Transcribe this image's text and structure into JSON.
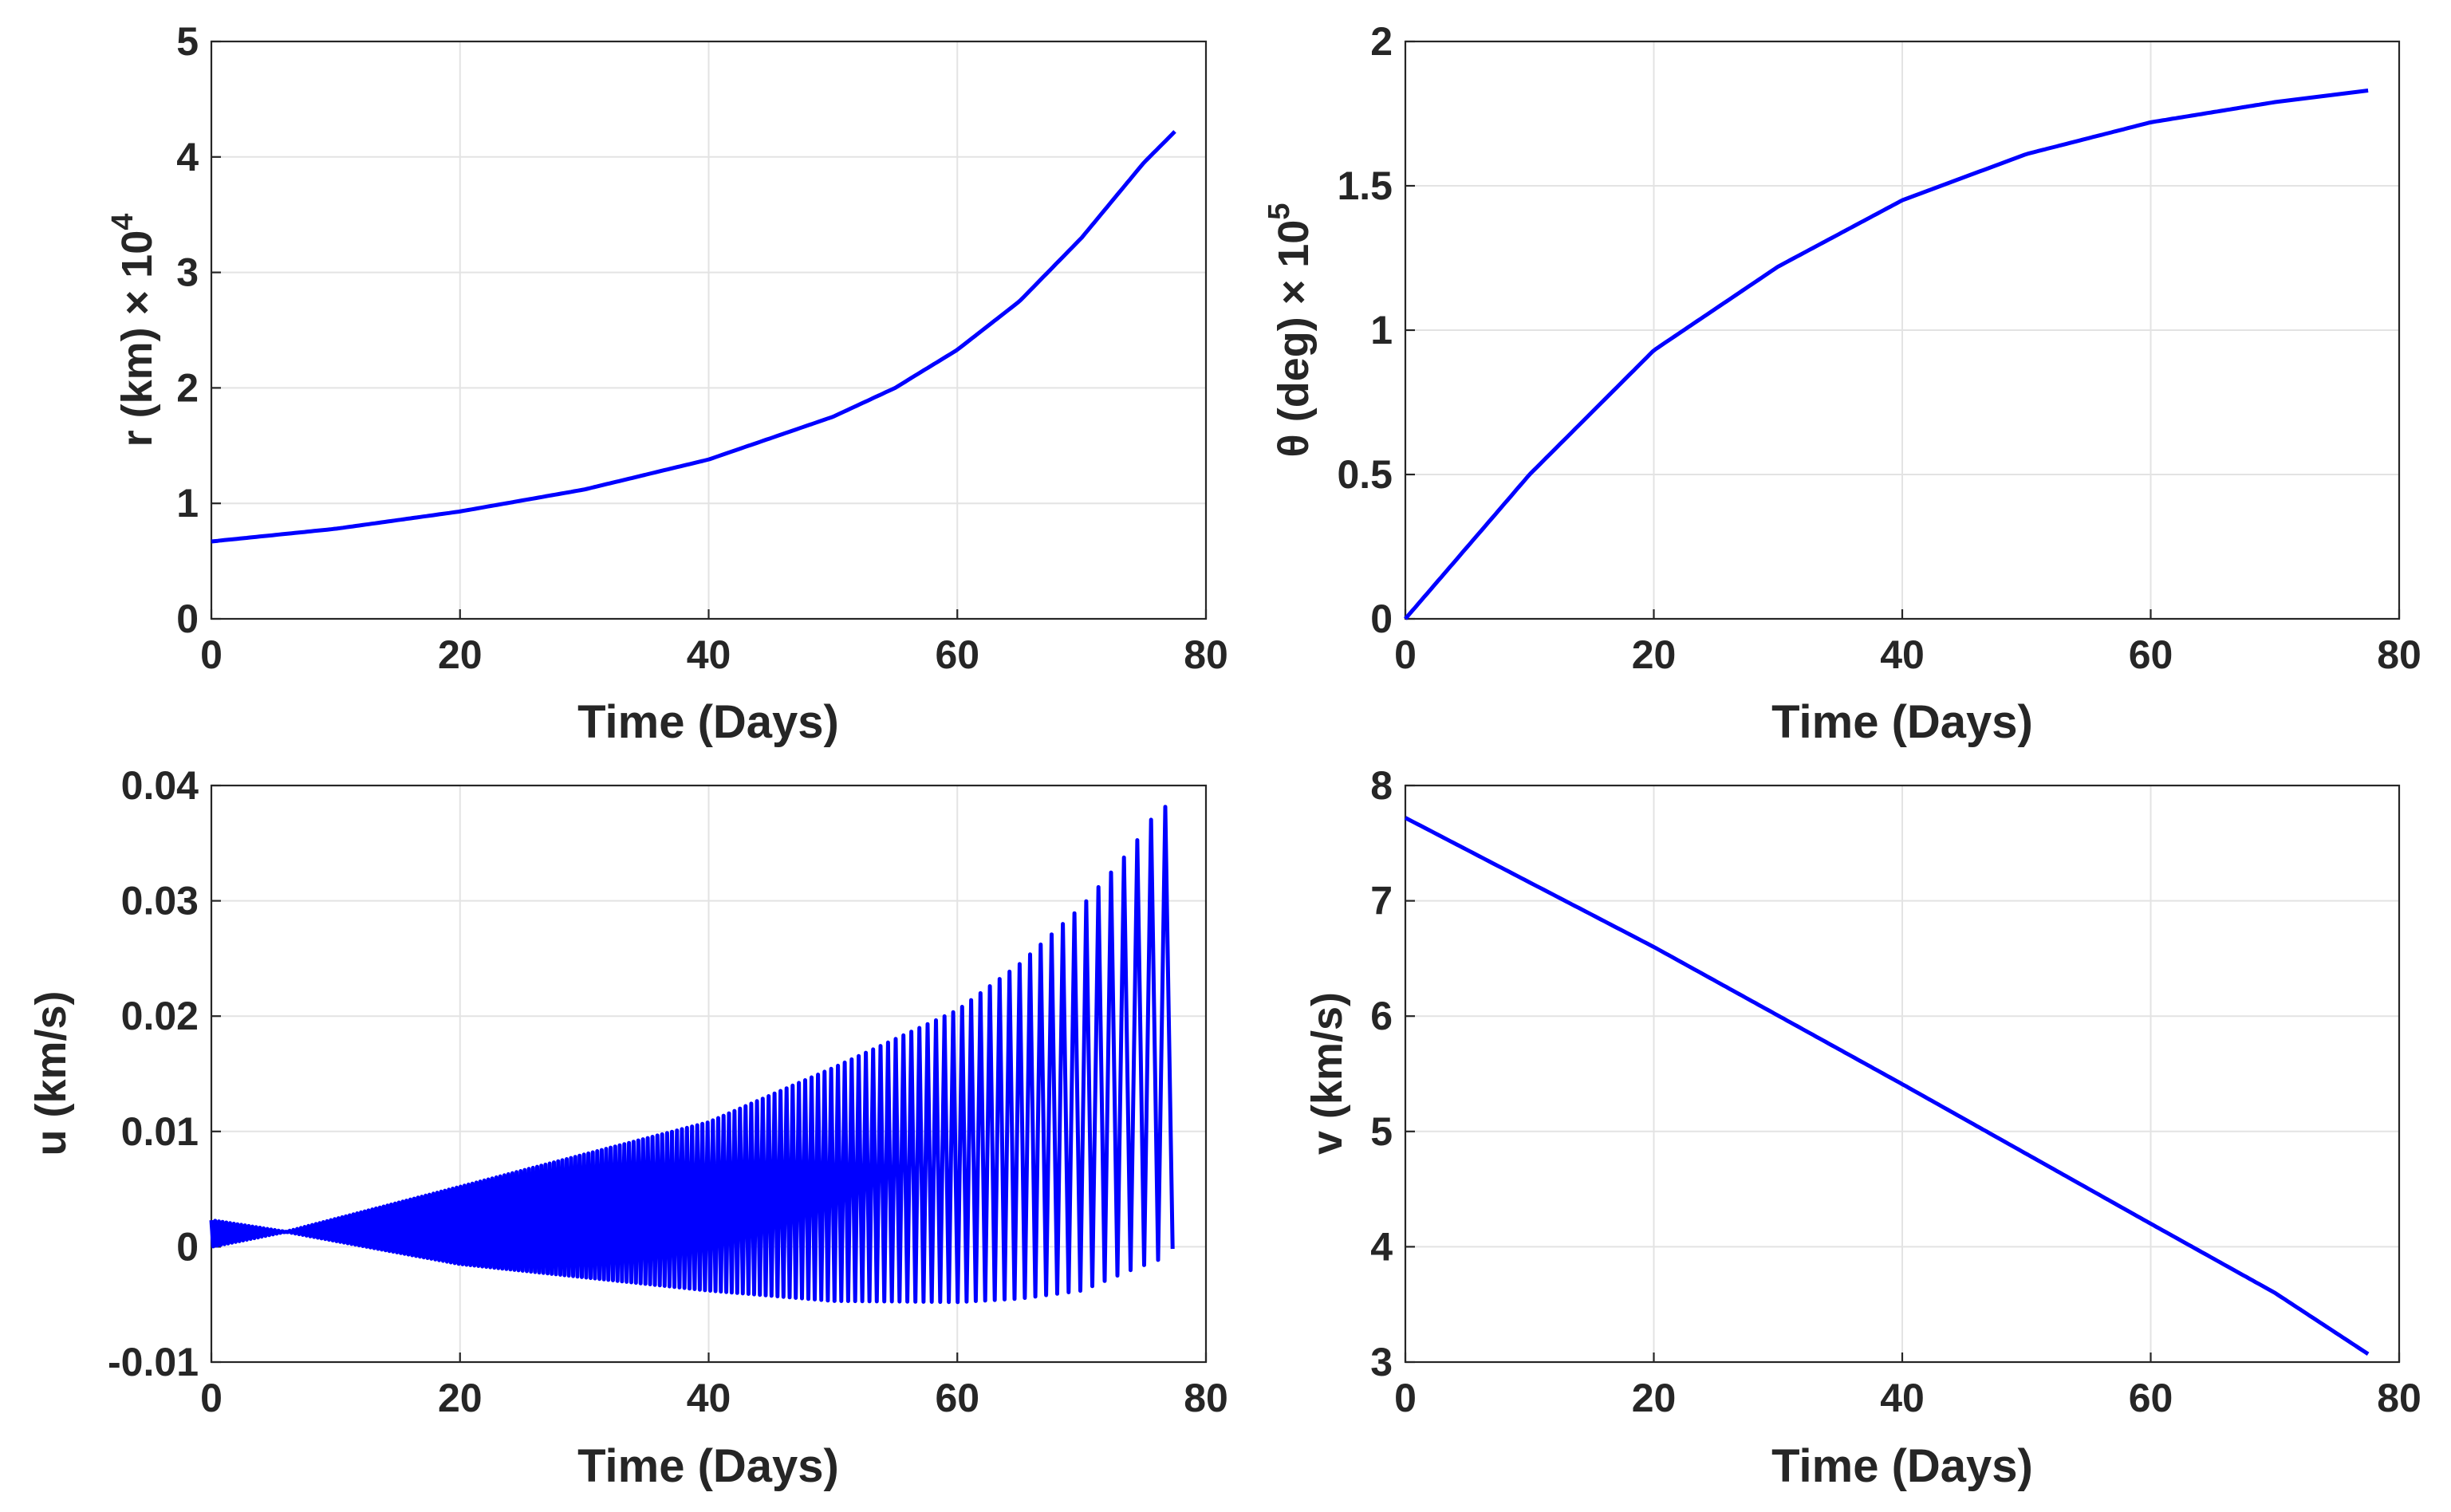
{
  "colors": {
    "series": "#0000ff",
    "axis": "#262626",
    "grid": "#e3e3e3"
  },
  "chart_data": [
    {
      "type": "line",
      "xlabel": "Time (Days)",
      "ylabel": "r (km) × 10",
      "ylabel_exponent": "4",
      "xlim": [
        0,
        80
      ],
      "ylim": [
        0,
        5
      ],
      "xticks": [
        "0",
        "20",
        "40",
        "60",
        "80"
      ],
      "yticks": [
        "0",
        "1",
        "2",
        "3",
        "4",
        "5"
      ],
      "grid": true,
      "x": [
        0,
        10,
        20,
        30,
        40,
        50,
        55,
        60,
        65,
        70,
        75,
        77.5
      ],
      "y": [
        0.67,
        0.78,
        0.93,
        1.12,
        1.38,
        1.75,
        2.0,
        2.33,
        2.75,
        3.3,
        3.95,
        4.22
      ]
    },
    {
      "type": "line",
      "xlabel": "Time (Days)",
      "ylabel": "θ (deg) × 10",
      "ylabel_exponent": "5",
      "xlim": [
        0,
        80
      ],
      "ylim": [
        0,
        2
      ],
      "xticks": [
        "0",
        "20",
        "40",
        "60",
        "80"
      ],
      "yticks": [
        "0",
        "0.5",
        "1",
        "1.5",
        "2"
      ],
      "grid": true,
      "x": [
        0,
        10,
        20,
        30,
        40,
        50,
        60,
        70,
        77.5
      ],
      "y": [
        0,
        0.5,
        0.93,
        1.22,
        1.45,
        1.61,
        1.72,
        1.79,
        1.83
      ]
    },
    {
      "type": "line",
      "xlabel": "Time (Days)",
      "ylabel": "u (km/s)",
      "xlim": [
        0,
        80
      ],
      "ylim": [
        -0.01,
        0.04
      ],
      "xticks": [
        "0",
        "20",
        "40",
        "60",
        "80"
      ],
      "yticks": [
        "-0.01",
        "0",
        "0.01",
        "0.02",
        "0.03",
        "0.04"
      ],
      "grid": true,
      "x": [
        0,
        6,
        20,
        40,
        50,
        60,
        65,
        70,
        74,
        76.5,
        77.5
      ],
      "y_upper": [
        0.0023,
        0.0013,
        0.0052,
        0.0108,
        0.0155,
        0.0205,
        0.0245,
        0.0295,
        0.0345,
        0.0385,
        0.037
      ],
      "y_lower": [
        0.0,
        0.0013,
        -0.0015,
        -0.0038,
        -0.0047,
        -0.0048,
        -0.0045,
        -0.0038,
        -0.002,
        -0.001,
        0.0
      ]
    },
    {
      "type": "line",
      "xlabel": "Time (Days)",
      "ylabel": "v (km/s)",
      "xlim": [
        0,
        80
      ],
      "ylim": [
        3,
        8
      ],
      "xticks": [
        "0",
        "20",
        "40",
        "60",
        "80"
      ],
      "yticks": [
        "3",
        "4",
        "5",
        "6",
        "7",
        "8"
      ],
      "grid": true,
      "x": [
        0,
        20,
        40,
        60,
        70,
        77.5
      ],
      "y": [
        7.72,
        6.6,
        5.41,
        4.2,
        3.6,
        3.07
      ]
    }
  ]
}
